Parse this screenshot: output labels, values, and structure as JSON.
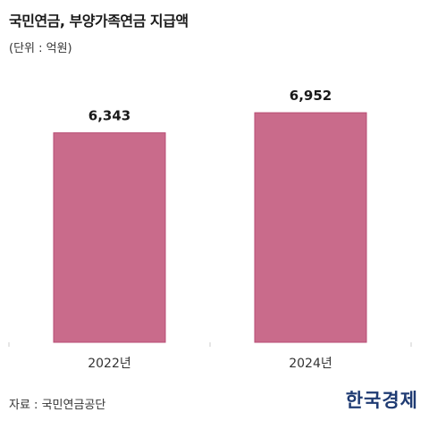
{
  "header": {
    "title": "국민연금, 부양가족연금 지급액",
    "unit": "(단위 : 억원)"
  },
  "footer": {
    "source": "자료 : 국민연금공단",
    "logo": "한국경제"
  },
  "colors": {
    "bar_fill": "#c96b8b",
    "bar_stroke": "#b84e74",
    "axis": "#cccccc"
  },
  "chart_data": {
    "type": "bar",
    "title": "국민연금, 부양가족연금 지급액",
    "xlabel": "",
    "ylabel": "",
    "categories": [
      "2022년",
      "2024년"
    ],
    "values": [
      6343,
      6952
    ],
    "value_labels": [
      "6,343",
      "6,952"
    ],
    "ylim": [
      0,
      8200
    ],
    "grid": false,
    "legend": "none"
  }
}
